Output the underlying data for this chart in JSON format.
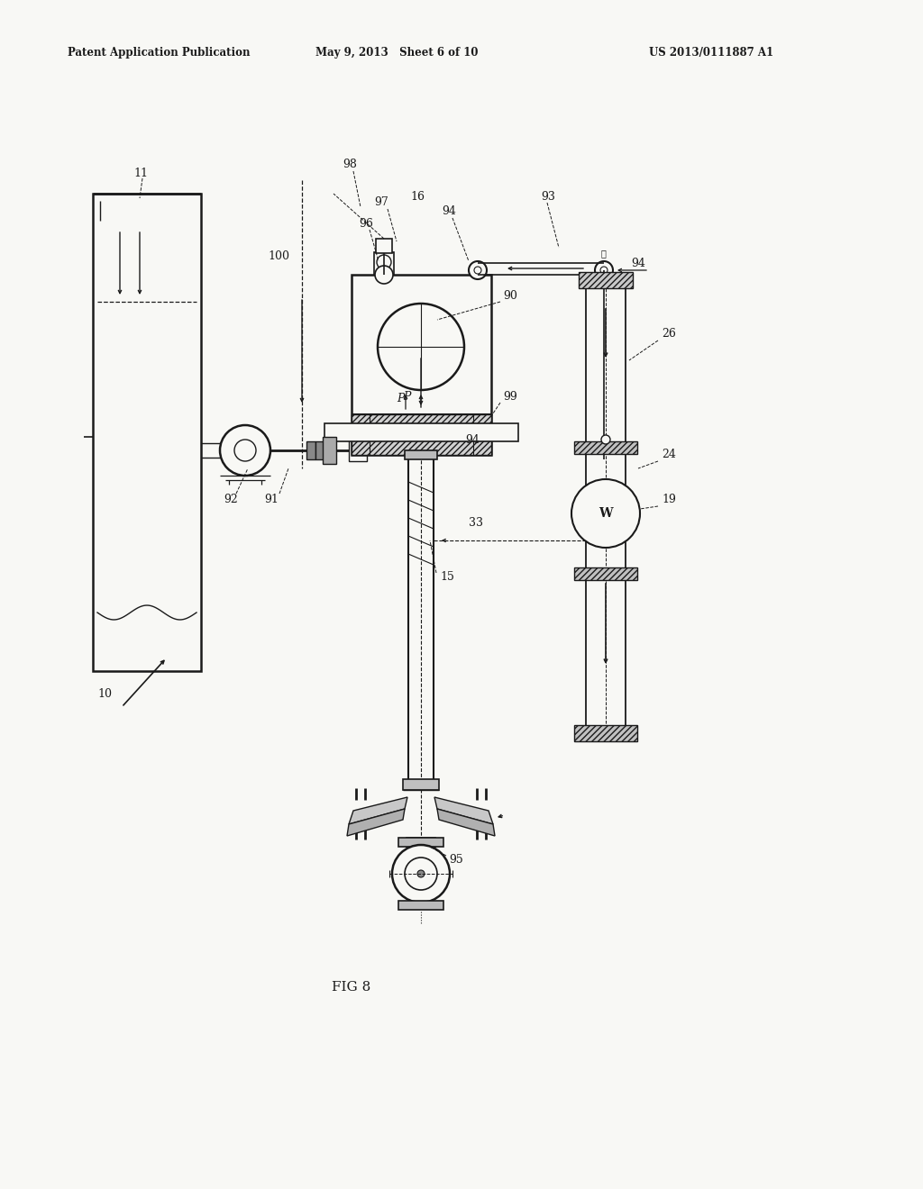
{
  "header_left": "Patent Application Publication",
  "header_center": "May 9, 2013   Sheet 6 of 10",
  "header_right": "US 2013/0111887 A1",
  "figure_label": "FIG 8",
  "bg_color": "#f8f8f5",
  "line_color": "#1a1a1a"
}
